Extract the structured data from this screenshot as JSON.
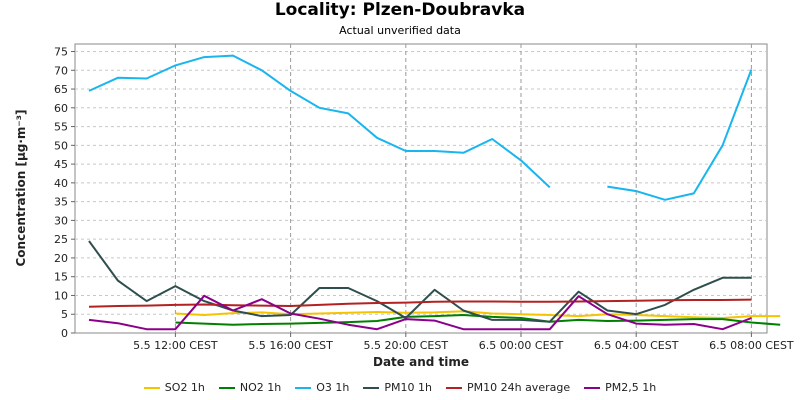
{
  "chart_data": {
    "type": "line",
    "title": "Locality: Plzen-Doubravka",
    "subtitle": "Actual unverified data",
    "xlabel": "Date and time",
    "ylabel": "Concentration [µg·m⁻³]",
    "ylim": [
      0,
      77
    ],
    "yticks": [
      0,
      5,
      10,
      15,
      20,
      25,
      30,
      35,
      40,
      45,
      50,
      55,
      60,
      65,
      70,
      75
    ],
    "grid": true,
    "legend_position": "bottom",
    "x": [
      "5.5 09:00",
      "5.5 10:00",
      "5.5 11:00",
      "5.5 12:00",
      "5.5 13:00",
      "5.5 14:00",
      "5.5 15:00",
      "5.5 16:00",
      "5.5 17:00",
      "5.5 18:00",
      "5.5 19:00",
      "5.5 20:00",
      "5.5 21:00",
      "5.5 22:00",
      "5.5 23:00",
      "6.5 00:00",
      "6.5 01:00",
      "6.5 02:00",
      "6.5 03:00",
      "6.5 04:00",
      "6.5 05:00",
      "6.5 06:00",
      "6.5 07:00",
      "6.5 08:00",
      "6.5 09:00"
    ],
    "x_tick_labels": [
      "5.5 12:00 CEST",
      "5.5 16:00 CEST",
      "5.5 20:00 CEST",
      "6.5 00:00 CEST",
      "6.5 04:00 CEST",
      "6.5 08:00 CEST"
    ],
    "x_tick_index": [
      3,
      7,
      11,
      15,
      19,
      23
    ],
    "series": [
      {
        "name": "SO2 1h",
        "color": "#f5c400",
        "width": 2,
        "values": [
          null,
          null,
          null,
          5.2,
          4.8,
          5.3,
          5.5,
          5.0,
          5.2,
          5.4,
          5.6,
          5.4,
          5.5,
          5.8,
          5.2,
          5.0,
          4.8,
          4.5,
          5.0,
          4.8,
          4.5,
          4.2,
          4.0,
          4.5,
          4.5
        ]
      },
      {
        "name": "NO2 1h",
        "color": "#008000",
        "width": 2,
        "values": [
          null,
          null,
          null,
          2.8,
          2.5,
          2.2,
          2.4,
          2.5,
          2.7,
          2.9,
          3.2,
          4.3,
          4.5,
          4.8,
          4.3,
          4.0,
          3.0,
          3.5,
          3.2,
          3.3,
          3.5,
          3.7,
          3.7,
          2.8,
          2.2
        ]
      },
      {
        "name": "O3 1h",
        "color": "#19b5ef",
        "width": 2,
        "values": [
          64.5,
          68.0,
          67.8,
          71.3,
          73.5,
          73.9,
          70.0,
          64.5,
          60.0,
          58.5,
          52.0,
          48.5,
          48.5,
          48.0,
          51.7,
          46.0,
          38.8,
          null,
          39.0,
          37.8,
          35.5,
          37.2,
          50.0,
          70.2,
          null
        ]
      },
      {
        "name": "PM10 1h",
        "color": "#2f4f4f",
        "width": 2,
        "values": [
          24.5,
          14.0,
          8.5,
          12.5,
          8.5,
          6.0,
          4.5,
          4.8,
          12.0,
          12.0,
          8.5,
          4.0,
          11.5,
          6.0,
          3.5,
          3.5,
          3.0,
          11.0,
          6.0,
          5.0,
          7.5,
          11.5,
          14.7,
          14.7,
          null
        ]
      },
      {
        "name": "PM10 24h average",
        "color": "#b22222",
        "width": 2,
        "values": [
          7.0,
          7.2,
          7.3,
          7.5,
          7.6,
          7.4,
          7.3,
          7.2,
          7.5,
          7.8,
          8.0,
          8.1,
          8.3,
          8.4,
          8.4,
          8.3,
          8.3,
          8.4,
          8.5,
          8.6,
          8.7,
          8.8,
          8.8,
          8.9,
          null
        ]
      },
      {
        "name": "PM2,5 1h",
        "color": "#8b008b",
        "width": 2,
        "values": [
          3.5,
          2.6,
          1.0,
          1.0,
          9.9,
          6.0,
          9.0,
          5.2,
          3.8,
          2.2,
          1.0,
          3.7,
          3.3,
          1.0,
          1.0,
          1.0,
          1.0,
          9.8,
          5.0,
          2.5,
          2.2,
          2.4,
          1.0,
          4.0,
          null
        ]
      }
    ]
  }
}
